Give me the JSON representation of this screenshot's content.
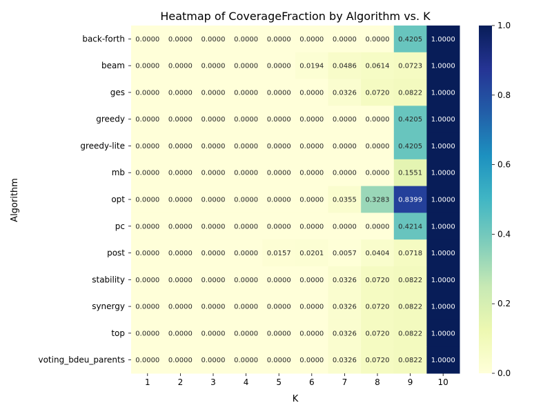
{
  "chart_data": {
    "type": "heatmap",
    "title": "Heatmap of CoverageFraction by Algorithm vs. K",
    "xlabel": "K",
    "ylabel": "Algorithm",
    "x_categories": [
      "1",
      "2",
      "3",
      "4",
      "5",
      "6",
      "7",
      "8",
      "9",
      "10"
    ],
    "y_categories": [
      "back-forth",
      "beam",
      "ges",
      "greedy",
      "greedy-lite",
      "mb",
      "opt",
      "pc",
      "post",
      "stability",
      "synergy",
      "top",
      "voting_bdeu_parents"
    ],
    "values": [
      [
        0.0,
        0.0,
        0.0,
        0.0,
        0.0,
        0.0,
        0.0,
        0.0,
        0.4205,
        1.0
      ],
      [
        0.0,
        0.0,
        0.0,
        0.0,
        0.0,
        0.0194,
        0.0486,
        0.0614,
        0.0723,
        1.0
      ],
      [
        0.0,
        0.0,
        0.0,
        0.0,
        0.0,
        0.0,
        0.0326,
        0.072,
        0.0822,
        1.0
      ],
      [
        0.0,
        0.0,
        0.0,
        0.0,
        0.0,
        0.0,
        0.0,
        0.0,
        0.4205,
        1.0
      ],
      [
        0.0,
        0.0,
        0.0,
        0.0,
        0.0,
        0.0,
        0.0,
        0.0,
        0.4205,
        1.0
      ],
      [
        0.0,
        0.0,
        0.0,
        0.0,
        0.0,
        0.0,
        0.0,
        0.0,
        0.1551,
        1.0
      ],
      [
        0.0,
        0.0,
        0.0,
        0.0,
        0.0,
        0.0,
        0.0355,
        0.3283,
        0.8399,
        1.0
      ],
      [
        0.0,
        0.0,
        0.0,
        0.0,
        0.0,
        0.0,
        0.0,
        0.0,
        0.4214,
        1.0
      ],
      [
        0.0,
        0.0,
        0.0,
        0.0,
        0.0157,
        0.0201,
        0.0057,
        0.0404,
        0.0718,
        1.0
      ],
      [
        0.0,
        0.0,
        0.0,
        0.0,
        0.0,
        0.0,
        0.0326,
        0.072,
        0.0822,
        1.0
      ],
      [
        0.0,
        0.0,
        0.0,
        0.0,
        0.0,
        0.0,
        0.0326,
        0.072,
        0.0822,
        1.0
      ],
      [
        0.0,
        0.0,
        0.0,
        0.0,
        0.0,
        0.0,
        0.0326,
        0.072,
        0.0822,
        1.0
      ],
      [
        0.0,
        0.0,
        0.0,
        0.0,
        0.0,
        0.0,
        0.0326,
        0.072,
        0.0822,
        1.0
      ]
    ],
    "value_format_decimals": 4,
    "colormap": "YlGnBu",
    "colormap_stops": [
      "#ffffd9",
      "#edf8b1",
      "#c7e9b4",
      "#7fcdbb",
      "#41b6c4",
      "#1d91c0",
      "#225ea8",
      "#253494",
      "#081d58"
    ],
    "vmin": 0.0,
    "vmax": 1.0,
    "colorbar_ticks": [
      "0.0",
      "0.2",
      "0.4",
      "0.6",
      "0.8",
      "1.0"
    ],
    "grid": false
  }
}
